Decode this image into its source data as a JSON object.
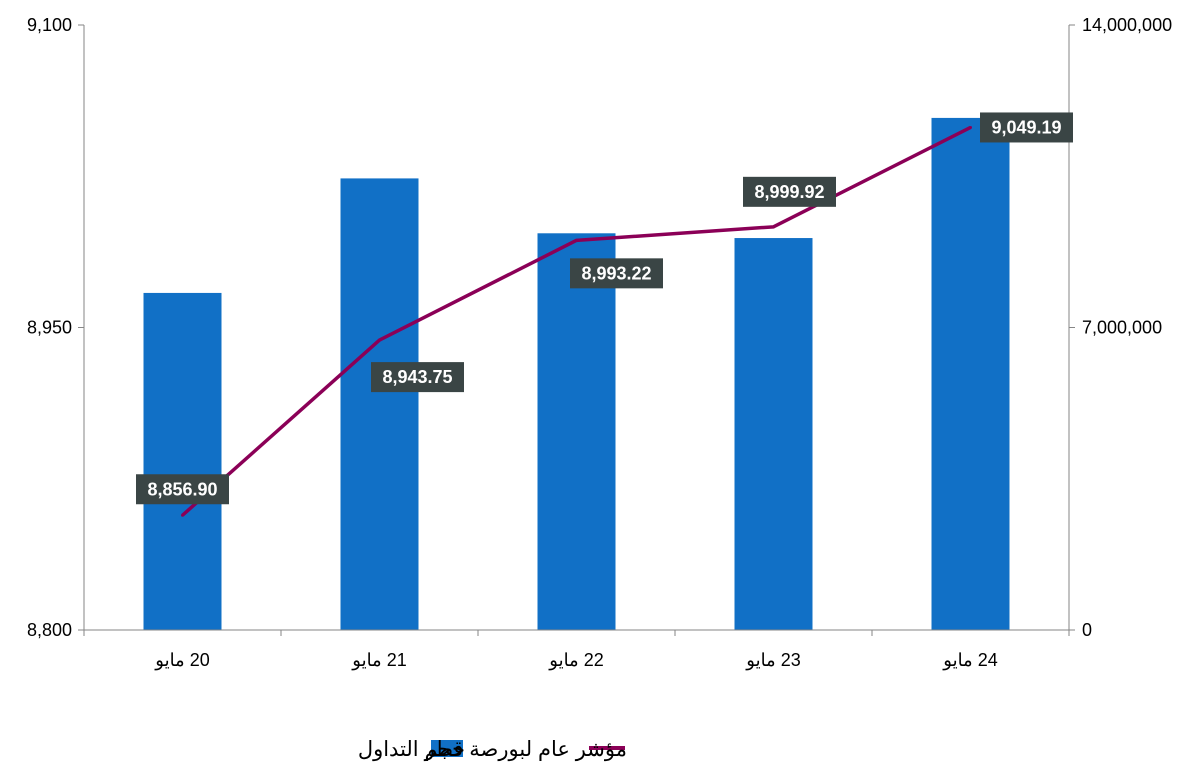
{
  "chart_data": {
    "type": "bar",
    "categories": [
      "20 مايو",
      "21 مايو",
      "22 مايو",
      "23 مايو",
      "24 مايو"
    ],
    "y_left": {
      "min": 8800,
      "max": 9100,
      "ticks": [
        "8,800",
        "8,950",
        "9,100"
      ],
      "tick_values": [
        8800,
        8950,
        9100
      ]
    },
    "y_right": {
      "min": 0,
      "max": 14000000,
      "ticks": [
        "0",
        "7,000,000",
        "14,000,000"
      ],
      "tick_values": [
        0,
        7000000,
        14000000
      ]
    },
    "series": [
      {
        "name": "حجم التداول",
        "type": "bar",
        "axis": "right",
        "color": "#1170C6",
        "values": [
          7800000,
          10450000,
          9180000,
          9070000,
          11850000
        ]
      },
      {
        "name": "مؤشر عام لبورصة قطر",
        "type": "line",
        "axis": "left",
        "color": "#8B0057",
        "values": [
          8856.9,
          8943.75,
          8993.22,
          8999.92,
          9049.19
        ],
        "labels": [
          "8,856.90",
          "8,943.75",
          "8,993.22",
          "8,999.92",
          "9,049.19"
        ]
      }
    ],
    "label_box_color": "#3A4545",
    "grid": false,
    "legend_position": "bottom"
  }
}
